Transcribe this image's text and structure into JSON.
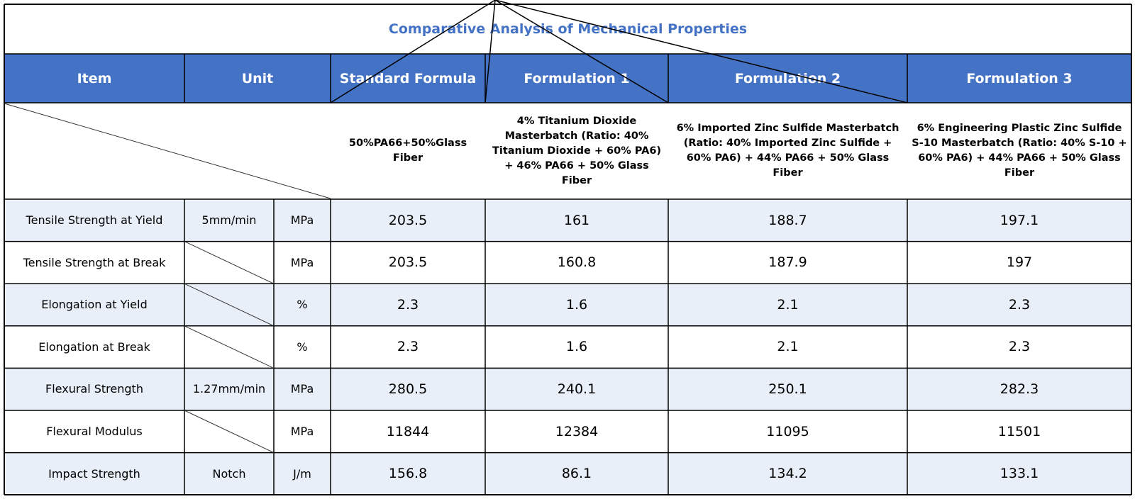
{
  "title": "Comparative Analysis of Mechanical Properties",
  "headers": {
    "item": "Item",
    "unit": "Unit",
    "standard": "Standard Formula",
    "f1": "Formulation 1",
    "f2": "Formulation 2",
    "f3": "Formulation 3"
  },
  "descriptions": {
    "standard": "50%PA66+50%Glass Fiber",
    "f1": "4% Titanium Dioxide Masterbatch (Ratio: 40% Titanium Dioxide + 60% PA6) + 46% PA66 + 50% Glass Fiber",
    "f2": "6% Imported Zinc Sulfide Masterbatch (Ratio: 40% Imported Zinc Sulfide + 60% PA6) + 44% PA66 + 50% Glass Fiber",
    "f3": "6% Engineering Plastic Zinc Sulfide S-10 Masterbatch (Ratio: 40% S-10 + 60% PA6) + 44% PA66 + 50% Glass Fiber"
  },
  "rows": [
    {
      "item": "Tensile Strength at Yield",
      "condition": "5mm/min",
      "unit": "MPa",
      "standard": "203.5",
      "f1": "161",
      "f2": "188.7",
      "f3": "197.1"
    },
    {
      "item": "Tensile Strength at Break",
      "condition": "",
      "unit": "MPa",
      "standard": "203.5",
      "f1": "160.8",
      "f2": "187.9",
      "f3": "197"
    },
    {
      "item": "Elongation at Yield",
      "condition": "",
      "unit": "%",
      "standard": "2.3",
      "f1": "1.6",
      "f2": "2.1",
      "f3": "2.3"
    },
    {
      "item": "Elongation at Break",
      "condition": "",
      "unit": "%",
      "standard": "2.3",
      "f1": "1.6",
      "f2": "2.1",
      "f3": "2.3"
    },
    {
      "item": "Flexural Strength",
      "condition": "1.27mm/min",
      "unit": "MPa",
      "standard": "280.5",
      "f1": "240.1",
      "f2": "250.1",
      "f3": "282.3"
    },
    {
      "item": "Flexural Modulus",
      "condition": "",
      "unit": "MPa",
      "standard": "11844",
      "f1": "12384",
      "f2": "11095",
      "f3": "11501"
    },
    {
      "item": "Impact Strength",
      "condition": "Notch",
      "unit": "J/m",
      "standard": "156.8",
      "f1": "86.1",
      "f2": "134.2",
      "f3": "133.1"
    }
  ],
  "colors": {
    "header_bg": "#4472c4",
    "header_text": "#ffffff",
    "title_text": "#4472c4",
    "alt_row_bg": "#e9eff8",
    "grid_line": "#000000"
  }
}
